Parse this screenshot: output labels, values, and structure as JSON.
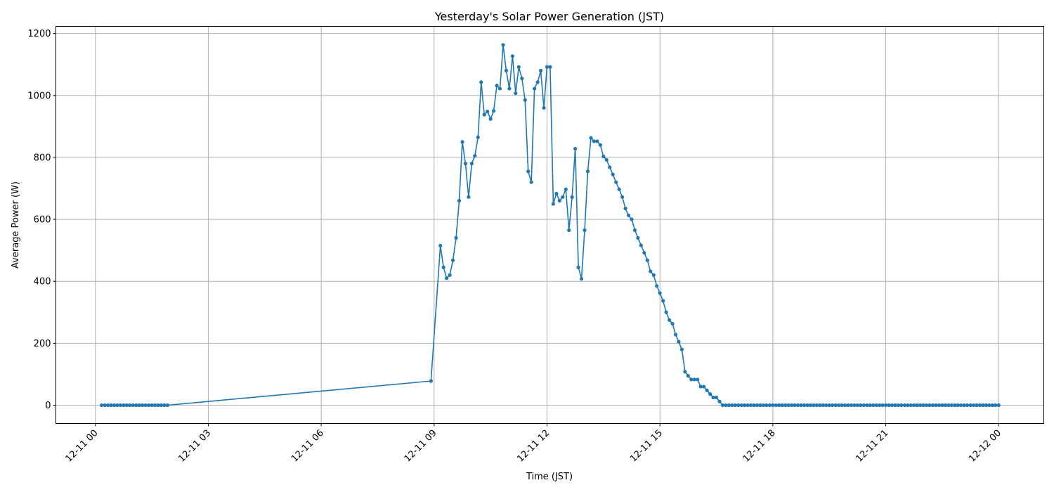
{
  "chart_data": {
    "type": "line",
    "title": "Yesterday's Solar Power Generation (JST)",
    "xlabel": "Time (JST)",
    "ylabel": "Average Power (W)",
    "grid": true,
    "color": "#1f77b4",
    "marker": "circle",
    "xlim": [
      "12-10 22:57",
      "12-12 01:12"
    ],
    "ylim": [
      -59,
      1223
    ],
    "xticks": [
      "12-11 00",
      "12-11 03",
      "12-11 06",
      "12-11 09",
      "12-11 12",
      "12-11 15",
      "12-11 18",
      "12-11 21",
      "12-12 00"
    ],
    "yticks": [
      0,
      200,
      400,
      600,
      800,
      1000,
      1200
    ],
    "points": [
      [
        "12-11 00:10",
        0
      ],
      [
        "12-11 00:15",
        0
      ],
      [
        "12-11 00:20",
        0
      ],
      [
        "12-11 00:25",
        0
      ],
      [
        "12-11 00:30",
        0
      ],
      [
        "12-11 00:35",
        0
      ],
      [
        "12-11 00:40",
        0
      ],
      [
        "12-11 00:45",
        0
      ],
      [
        "12-11 00:50",
        0
      ],
      [
        "12-11 00:55",
        0
      ],
      [
        "12-11 01:00",
        0
      ],
      [
        "12-11 01:05",
        0
      ],
      [
        "12-11 01:10",
        0
      ],
      [
        "12-11 01:15",
        0
      ],
      [
        "12-11 01:20",
        0
      ],
      [
        "12-11 01:25",
        0
      ],
      [
        "12-11 01:30",
        0
      ],
      [
        "12-11 01:35",
        0
      ],
      [
        "12-11 01:40",
        0
      ],
      [
        "12-11 01:45",
        0
      ],
      [
        "12-11 01:50",
        0
      ],
      [
        "12-11 01:55",
        0
      ],
      [
        "12-11 08:55",
        78
      ],
      [
        "12-11 09:10",
        515
      ],
      [
        "12-11 09:15",
        445
      ],
      [
        "12-11 09:20",
        410
      ],
      [
        "12-11 09:25",
        420
      ],
      [
        "12-11 09:30",
        468
      ],
      [
        "12-11 09:35",
        540
      ],
      [
        "12-11 09:40",
        660
      ],
      [
        "12-11 09:45",
        850
      ],
      [
        "12-11 09:50",
        780
      ],
      [
        "12-11 09:55",
        672
      ],
      [
        "12-11 10:00",
        780
      ],
      [
        "12-11 10:05",
        805
      ],
      [
        "12-11 10:10",
        865
      ],
      [
        "12-11 10:15",
        1043
      ],
      [
        "12-11 10:20",
        938
      ],
      [
        "12-11 10:25",
        948
      ],
      [
        "12-11 10:30",
        924
      ],
      [
        "12-11 10:35",
        950
      ],
      [
        "12-11 10:40",
        1032
      ],
      [
        "12-11 10:45",
        1022
      ],
      [
        "12-11 10:50",
        1163
      ],
      [
        "12-11 10:55",
        1080
      ],
      [
        "12-11 11:00",
        1022
      ],
      [
        "12-11 11:05",
        1127
      ],
      [
        "12-11 11:10",
        1007
      ],
      [
        "12-11 11:15",
        1092
      ],
      [
        "12-11 11:20",
        1055
      ],
      [
        "12-11 11:25",
        985
      ],
      [
        "12-11 11:30",
        755
      ],
      [
        "12-11 11:35",
        720
      ],
      [
        "12-11 11:40",
        1022
      ],
      [
        "12-11 11:45",
        1043
      ],
      [
        "12-11 11:50",
        1080
      ],
      [
        "12-11 11:55",
        960
      ],
      [
        "12-11 12:00",
        1092
      ],
      [
        "12-11 12:05",
        1092
      ],
      [
        "12-11 12:10",
        650
      ],
      [
        "12-11 12:15",
        683
      ],
      [
        "12-11 12:20",
        660
      ],
      [
        "12-11 12:25",
        672
      ],
      [
        "12-11 12:30",
        697
      ],
      [
        "12-11 12:35",
        565
      ],
      [
        "12-11 12:40",
        672
      ],
      [
        "12-11 12:45",
        828
      ],
      [
        "12-11 12:50",
        445
      ],
      [
        "12-11 12:55",
        408
      ],
      [
        "12-11 13:00",
        565
      ],
      [
        "12-11 13:05",
        755
      ],
      [
        "12-11 13:10",
        863
      ],
      [
        "12-11 13:15",
        852
      ],
      [
        "12-11 13:20",
        852
      ],
      [
        "12-11 13:25",
        840
      ],
      [
        "12-11 13:30",
        803
      ],
      [
        "12-11 13:35",
        792
      ],
      [
        "12-11 13:40",
        768
      ],
      [
        "12-11 13:45",
        745
      ],
      [
        "12-11 13:50",
        720
      ],
      [
        "12-11 13:55",
        697
      ],
      [
        "12-11 14:00",
        672
      ],
      [
        "12-11 14:05",
        635
      ],
      [
        "12-11 14:10",
        613
      ],
      [
        "12-11 14:15",
        600
      ],
      [
        "12-11 14:20",
        565
      ],
      [
        "12-11 14:25",
        540
      ],
      [
        "12-11 14:30",
        516
      ],
      [
        "12-11 14:35",
        492
      ],
      [
        "12-11 14:40",
        468
      ],
      [
        "12-11 14:45",
        432
      ],
      [
        "12-11 14:50",
        420
      ],
      [
        "12-11 14:55",
        385
      ],
      [
        "12-11 15:00",
        362
      ],
      [
        "12-11 15:05",
        337
      ],
      [
        "12-11 15:10",
        300
      ],
      [
        "12-11 15:15",
        275
      ],
      [
        "12-11 15:20",
        263
      ],
      [
        "12-11 15:25",
        228
      ],
      [
        "12-11 15:30",
        205
      ],
      [
        "12-11 15:35",
        180
      ],
      [
        "12-11 15:40",
        108
      ],
      [
        "12-11 15:45",
        95
      ],
      [
        "12-11 15:50",
        83
      ],
      [
        "12-11 15:55",
        83
      ],
      [
        "12-11 16:00",
        83
      ],
      [
        "12-11 16:05",
        60
      ],
      [
        "12-11 16:10",
        60
      ],
      [
        "12-11 16:15",
        48
      ],
      [
        "12-11 16:20",
        36
      ],
      [
        "12-11 16:25",
        25
      ],
      [
        "12-11 16:30",
        25
      ],
      [
        "12-11 16:35",
        12
      ],
      [
        "12-11 16:40",
        0
      ],
      [
        "12-11 16:45",
        0
      ],
      [
        "12-11 16:50",
        0
      ],
      [
        "12-11 16:55",
        0
      ],
      [
        "12-11 17:00",
        0
      ],
      [
        "12-11 17:05",
        0
      ],
      [
        "12-11 17:10",
        0
      ],
      [
        "12-11 17:15",
        0
      ],
      [
        "12-11 17:20",
        0
      ],
      [
        "12-11 17:25",
        0
      ],
      [
        "12-11 17:30",
        0
      ],
      [
        "12-11 17:35",
        0
      ],
      [
        "12-11 17:40",
        0
      ],
      [
        "12-11 17:45",
        0
      ],
      [
        "12-11 17:50",
        0
      ],
      [
        "12-11 17:55",
        0
      ],
      [
        "12-11 18:00",
        0
      ],
      [
        "12-11 18:05",
        0
      ],
      [
        "12-11 18:10",
        0
      ],
      [
        "12-11 18:15",
        0
      ],
      [
        "12-11 18:20",
        0
      ],
      [
        "12-11 18:25",
        0
      ],
      [
        "12-11 18:30",
        0
      ],
      [
        "12-11 18:35",
        0
      ],
      [
        "12-11 18:40",
        0
      ],
      [
        "12-11 18:45",
        0
      ],
      [
        "12-11 18:50",
        0
      ],
      [
        "12-11 18:55",
        0
      ],
      [
        "12-11 19:00",
        0
      ],
      [
        "12-11 19:05",
        0
      ],
      [
        "12-11 19:10",
        0
      ],
      [
        "12-11 19:15",
        0
      ],
      [
        "12-11 19:20",
        0
      ],
      [
        "12-11 19:25",
        0
      ],
      [
        "12-11 19:30",
        0
      ],
      [
        "12-11 19:35",
        0
      ],
      [
        "12-11 19:40",
        0
      ],
      [
        "12-11 19:45",
        0
      ],
      [
        "12-11 19:50",
        0
      ],
      [
        "12-11 19:55",
        0
      ],
      [
        "12-11 20:00",
        0
      ],
      [
        "12-11 20:05",
        0
      ],
      [
        "12-11 20:10",
        0
      ],
      [
        "12-11 20:15",
        0
      ],
      [
        "12-11 20:20",
        0
      ],
      [
        "12-11 20:25",
        0
      ],
      [
        "12-11 20:30",
        0
      ],
      [
        "12-11 20:35",
        0
      ],
      [
        "12-11 20:40",
        0
      ],
      [
        "12-11 20:45",
        0
      ],
      [
        "12-11 20:50",
        0
      ],
      [
        "12-11 20:55",
        0
      ],
      [
        "12-11 21:00",
        0
      ],
      [
        "12-11 21:05",
        0
      ],
      [
        "12-11 21:10",
        0
      ],
      [
        "12-11 21:15",
        0
      ],
      [
        "12-11 21:20",
        0
      ],
      [
        "12-11 21:25",
        0
      ],
      [
        "12-11 21:30",
        0
      ],
      [
        "12-11 21:35",
        0
      ],
      [
        "12-11 21:40",
        0
      ],
      [
        "12-11 21:45",
        0
      ],
      [
        "12-11 21:50",
        0
      ],
      [
        "12-11 21:55",
        0
      ],
      [
        "12-11 22:00",
        0
      ],
      [
        "12-11 22:05",
        0
      ],
      [
        "12-11 22:10",
        0
      ],
      [
        "12-11 22:15",
        0
      ],
      [
        "12-11 22:20",
        0
      ],
      [
        "12-11 22:25",
        0
      ],
      [
        "12-11 22:30",
        0
      ],
      [
        "12-11 22:35",
        0
      ],
      [
        "12-11 22:40",
        0
      ],
      [
        "12-11 22:45",
        0
      ],
      [
        "12-11 22:50",
        0
      ],
      [
        "12-11 22:55",
        0
      ],
      [
        "12-11 23:00",
        0
      ],
      [
        "12-11 23:05",
        0
      ],
      [
        "12-11 23:10",
        0
      ],
      [
        "12-11 23:15",
        0
      ],
      [
        "12-11 23:20",
        0
      ],
      [
        "12-11 23:25",
        0
      ],
      [
        "12-11 23:30",
        0
      ],
      [
        "12-11 23:35",
        0
      ],
      [
        "12-11 23:40",
        0
      ],
      [
        "12-11 23:45",
        0
      ],
      [
        "12-11 23:50",
        0
      ],
      [
        "12-11 23:55",
        0
      ],
      [
        "12-12 00:00",
        0
      ]
    ]
  }
}
